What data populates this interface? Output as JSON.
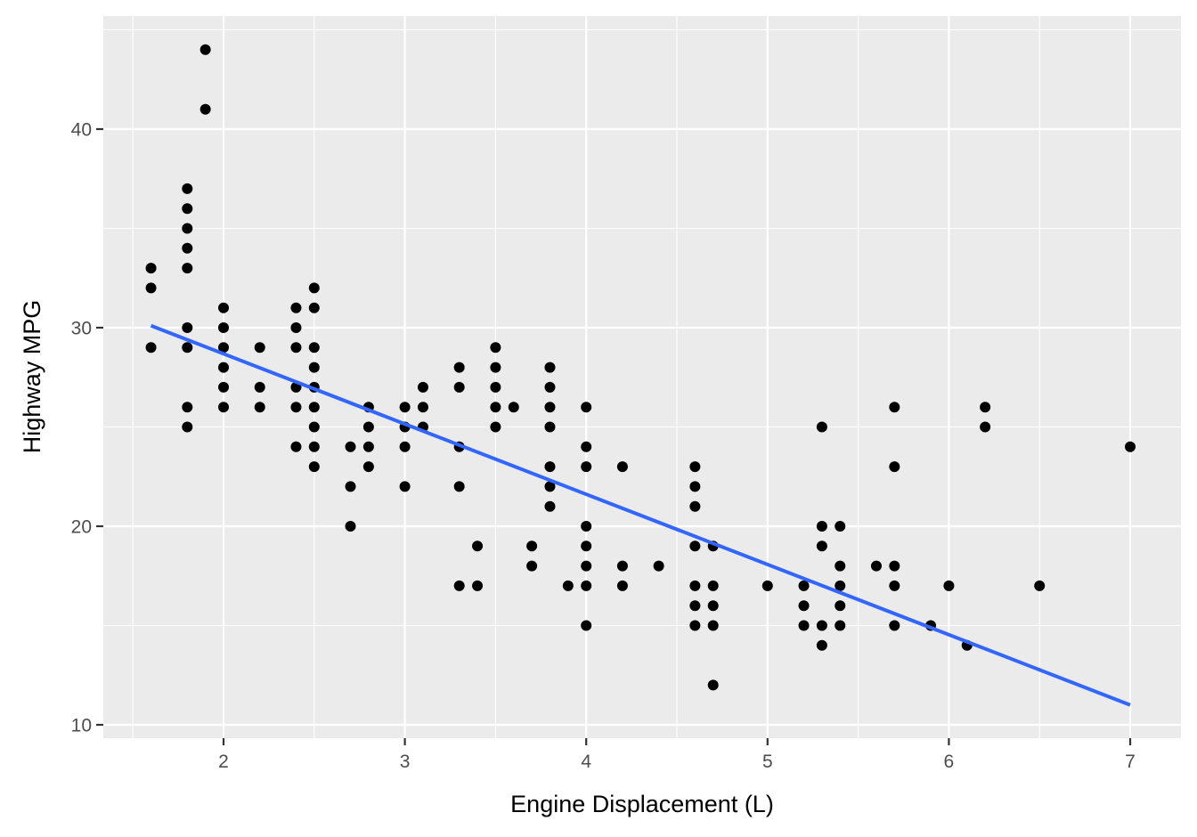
{
  "chart_data": {
    "type": "scatter",
    "title": "",
    "xlabel": "Engine Displacement (L)",
    "ylabel": "Highway MPG",
    "xlim": [
      1.33,
      7.27
    ],
    "ylim": [
      10.4,
      45.6
    ],
    "x_ticks": [
      2,
      3,
      4,
      5,
      6,
      7
    ],
    "y_ticks": [
      10,
      20,
      30,
      40
    ],
    "grid": true,
    "legend": "none",
    "background": "#ebebeb",
    "point_color": "#000000",
    "trend_color": "#3366ff",
    "points": [
      [
        1.6,
        33
      ],
      [
        1.6,
        32
      ],
      [
        1.6,
        29
      ],
      [
        1.8,
        37
      ],
      [
        1.8,
        36
      ],
      [
        1.8,
        35
      ],
      [
        1.8,
        34
      ],
      [
        1.8,
        33
      ],
      [
        1.8,
        30
      ],
      [
        1.8,
        29
      ],
      [
        1.8,
        26
      ],
      [
        1.8,
        25
      ],
      [
        1.9,
        44
      ],
      [
        1.9,
        41
      ],
      [
        2.0,
        31
      ],
      [
        2.0,
        30
      ],
      [
        2.0,
        29
      ],
      [
        2.0,
        28
      ],
      [
        2.0,
        27
      ],
      [
        2.0,
        26
      ],
      [
        2.2,
        29
      ],
      [
        2.2,
        27
      ],
      [
        2.2,
        26
      ],
      [
        2.4,
        31
      ],
      [
        2.4,
        30
      ],
      [
        2.4,
        29
      ],
      [
        2.4,
        27
      ],
      [
        2.4,
        26
      ],
      [
        2.4,
        24
      ],
      [
        2.5,
        32
      ],
      [
        2.5,
        31
      ],
      [
        2.5,
        29
      ],
      [
        2.5,
        28
      ],
      [
        2.5,
        27
      ],
      [
        2.5,
        26
      ],
      [
        2.5,
        25
      ],
      [
        2.5,
        24
      ],
      [
        2.5,
        23
      ],
      [
        2.7,
        24
      ],
      [
        2.7,
        22
      ],
      [
        2.7,
        20
      ],
      [
        2.8,
        26
      ],
      [
        2.8,
        25
      ],
      [
        2.8,
        24
      ],
      [
        2.8,
        23
      ],
      [
        3.0,
        26
      ],
      [
        3.0,
        25
      ],
      [
        3.0,
        24
      ],
      [
        3.0,
        22
      ],
      [
        3.1,
        27
      ],
      [
        3.1,
        26
      ],
      [
        3.1,
        25
      ],
      [
        3.3,
        28
      ],
      [
        3.3,
        27
      ],
      [
        3.3,
        24
      ],
      [
        3.3,
        22
      ],
      [
        3.3,
        17
      ],
      [
        3.4,
        19
      ],
      [
        3.4,
        17
      ],
      [
        3.5,
        29
      ],
      [
        3.5,
        28
      ],
      [
        3.5,
        27
      ],
      [
        3.5,
        26
      ],
      [
        3.5,
        25
      ],
      [
        3.6,
        26
      ],
      [
        3.7,
        19
      ],
      [
        3.7,
        18
      ],
      [
        3.8,
        28
      ],
      [
        3.8,
        27
      ],
      [
        3.8,
        26
      ],
      [
        3.8,
        25
      ],
      [
        3.8,
        23
      ],
      [
        3.8,
        22
      ],
      [
        3.8,
        21
      ],
      [
        3.9,
        17
      ],
      [
        4.0,
        26
      ],
      [
        4.0,
        24
      ],
      [
        4.0,
        23
      ],
      [
        4.0,
        20
      ],
      [
        4.0,
        19
      ],
      [
        4.0,
        18
      ],
      [
        4.0,
        17
      ],
      [
        4.0,
        15
      ],
      [
        4.2,
        23
      ],
      [
        4.2,
        18
      ],
      [
        4.2,
        17
      ],
      [
        4.4,
        18
      ],
      [
        4.6,
        23
      ],
      [
        4.6,
        22
      ],
      [
        4.6,
        21
      ],
      [
        4.6,
        19
      ],
      [
        4.6,
        17
      ],
      [
        4.6,
        16
      ],
      [
        4.6,
        15
      ],
      [
        4.7,
        19
      ],
      [
        4.7,
        17
      ],
      [
        4.7,
        16
      ],
      [
        4.7,
        15
      ],
      [
        4.7,
        12
      ],
      [
        5.0,
        17
      ],
      [
        5.2,
        17
      ],
      [
        5.2,
        16
      ],
      [
        5.2,
        15
      ],
      [
        5.3,
        25
      ],
      [
        5.3,
        20
      ],
      [
        5.3,
        19
      ],
      [
        5.3,
        15
      ],
      [
        5.3,
        14
      ],
      [
        5.4,
        20
      ],
      [
        5.4,
        18
      ],
      [
        5.4,
        17
      ],
      [
        5.4,
        16
      ],
      [
        5.4,
        15
      ],
      [
        5.6,
        18
      ],
      [
        5.7,
        26
      ],
      [
        5.7,
        23
      ],
      [
        5.7,
        18
      ],
      [
        5.7,
        17
      ],
      [
        5.7,
        15
      ],
      [
        5.9,
        15
      ],
      [
        6.0,
        17
      ],
      [
        6.1,
        14
      ],
      [
        6.2,
        26
      ],
      [
        6.2,
        25
      ],
      [
        6.5,
        17
      ],
      [
        7.0,
        24
      ]
    ],
    "trend_line": {
      "method": "linear",
      "x": [
        1.6,
        7.0
      ],
      "y": [
        30.1,
        11.0
      ]
    }
  }
}
